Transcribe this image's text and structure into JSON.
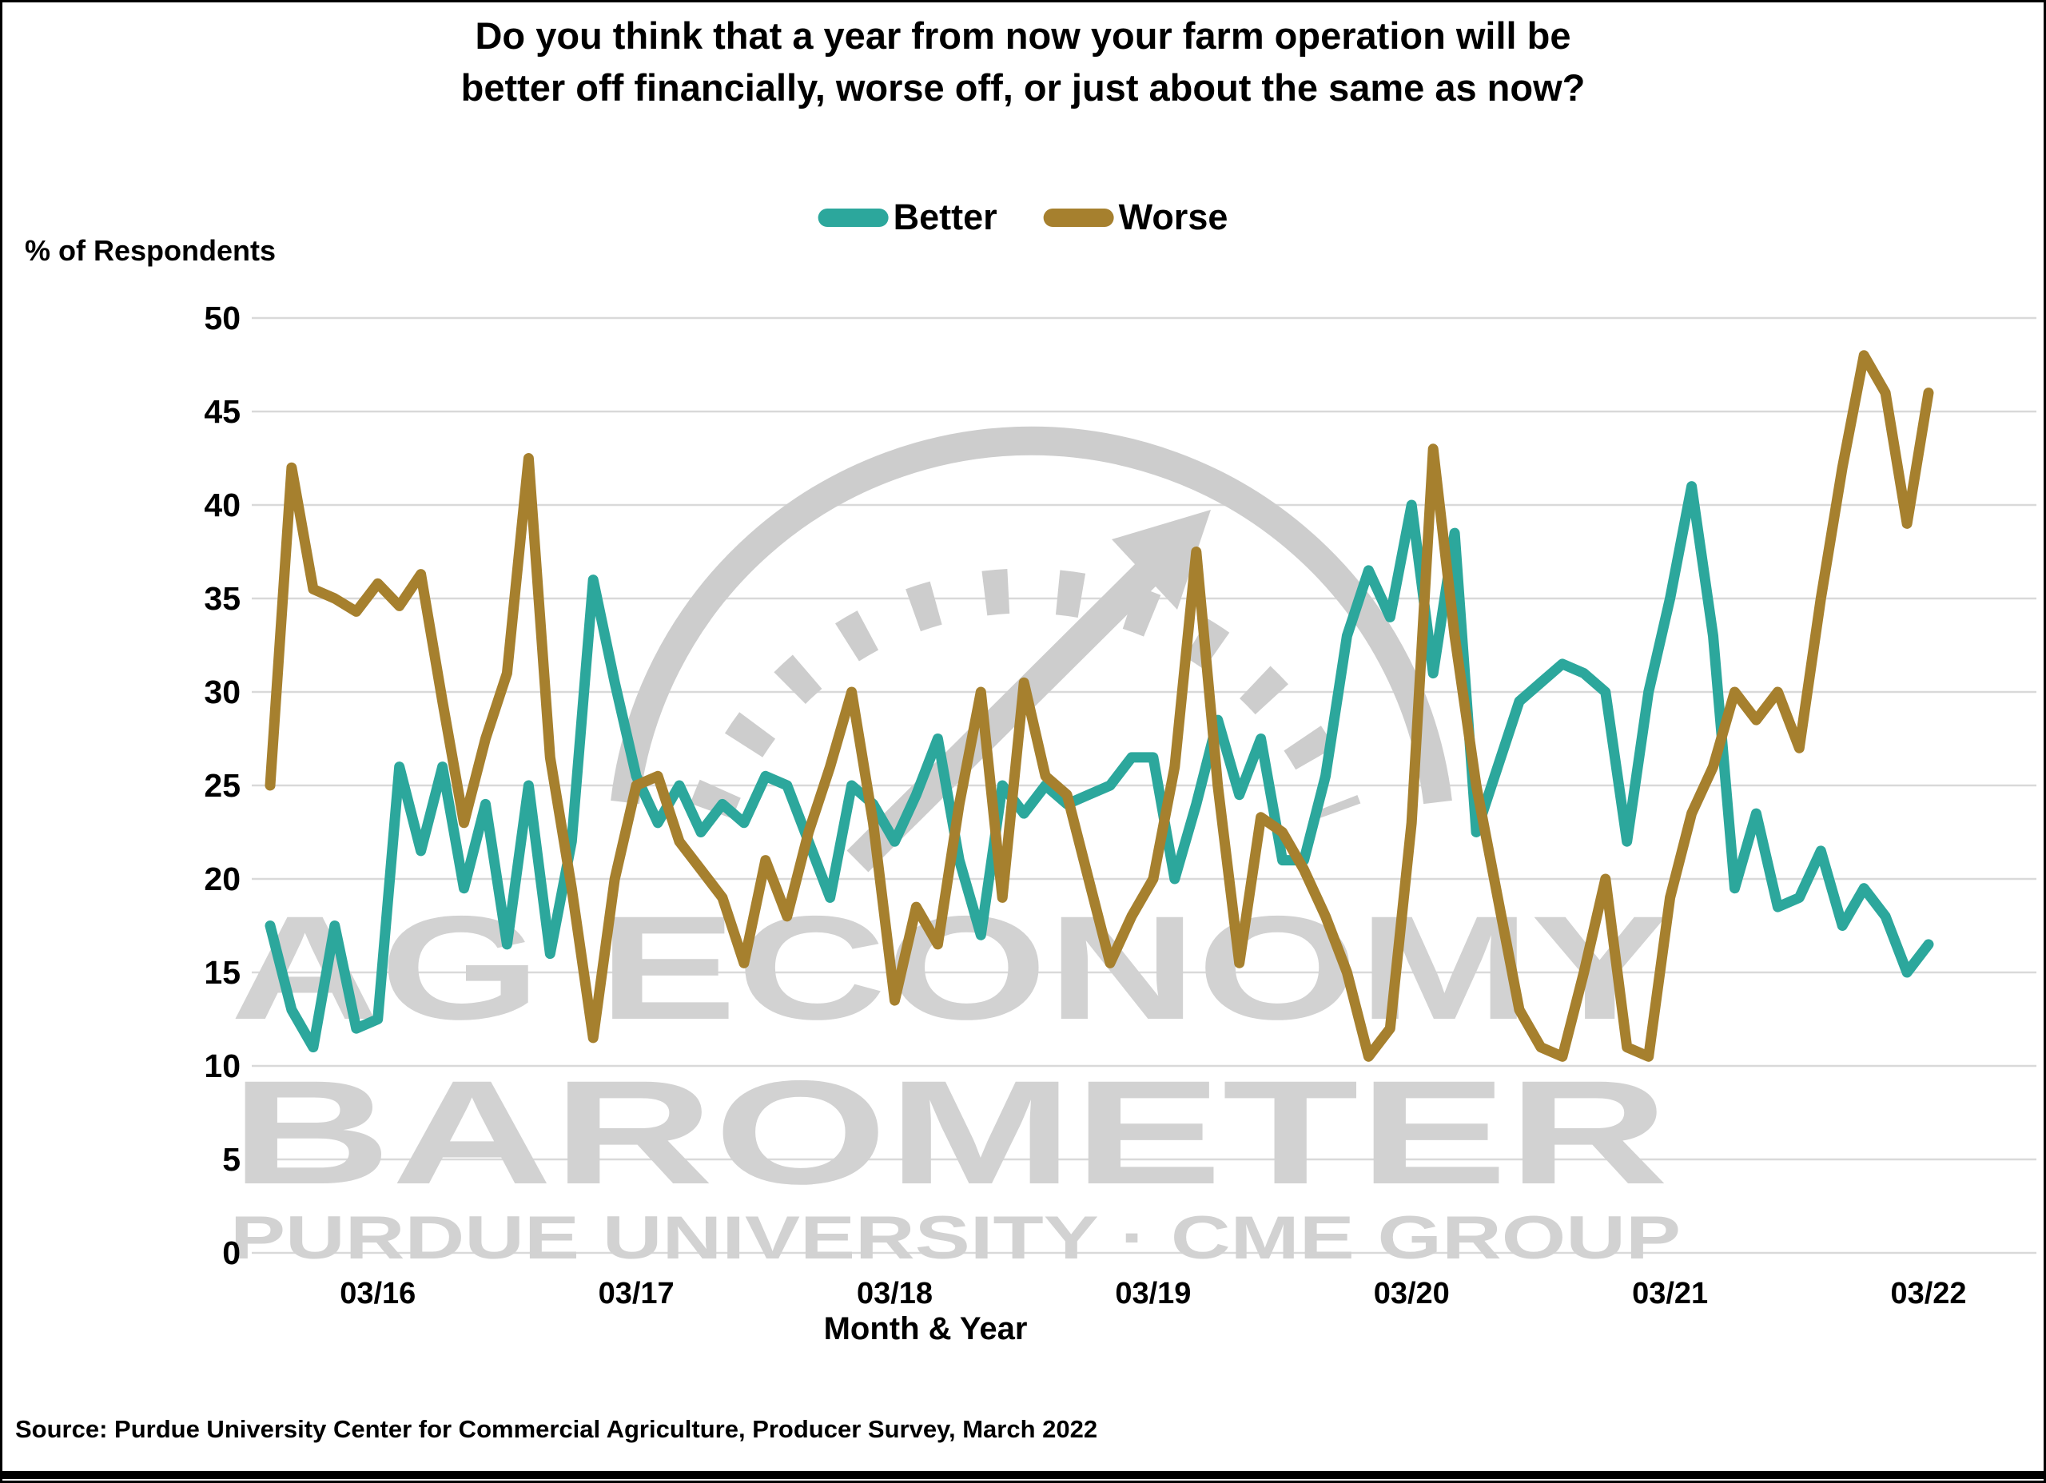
{
  "title": {
    "line1": "Do you think that a year from now your farm operation will be",
    "line2": "better off financially, worse off, or just about the same as now?"
  },
  "legend": [
    {
      "label": "Better",
      "color": "#2CA79C"
    },
    {
      "label": "Worse",
      "color": "#A6802E"
    }
  ],
  "y_axis": {
    "title": "% of Respondents",
    "ticks": [
      0,
      5,
      10,
      15,
      20,
      25,
      30,
      35,
      40,
      45,
      50
    ]
  },
  "x_axis": {
    "title": "Month & Year",
    "tick_labels": [
      "03/16",
      "03/17",
      "03/18",
      "03/19",
      "03/20",
      "03/21",
      "03/22"
    ]
  },
  "source": "Source: Purdue University Center for Commercial Agriculture, Producer Survey, March 2022",
  "watermark": {
    "line1": "AG ECONOMY",
    "line2": "BAROMETER",
    "line3": "PURDUE UNIVERSITY · CME GROUP",
    "text_color": "#d2d2d2",
    "gauge_color": "#cdcdcd"
  },
  "chart_data": {
    "type": "line",
    "title": "Do you think that a year from now your farm operation will be better off financially, worse off, or just about the same as now?",
    "xlabel": "Month & Year",
    "ylabel": "% of Respondents",
    "ylim": [
      0,
      50
    ],
    "grid": true,
    "legend_position": "top",
    "x": [
      "10/15",
      "11/15",
      "12/15",
      "01/16",
      "02/16",
      "03/16",
      "04/16",
      "05/16",
      "06/16",
      "07/16",
      "08/16",
      "09/16",
      "10/16",
      "11/16",
      "12/16",
      "01/17",
      "02/17",
      "03/17",
      "04/17",
      "05/17",
      "06/17",
      "07/17",
      "08/17",
      "09/17",
      "10/17",
      "11/17",
      "12/17",
      "01/18",
      "02/18",
      "03/18",
      "04/18",
      "05/18",
      "06/18",
      "07/18",
      "08/18",
      "09/18",
      "10/18",
      "11/18",
      "12/18",
      "01/19",
      "02/19",
      "03/19",
      "04/19",
      "05/19",
      "06/19",
      "07/19",
      "08/19",
      "09/19",
      "10/19",
      "11/19",
      "12/19",
      "01/20",
      "02/20",
      "03/20",
      "04/20",
      "05/20",
      "06/20",
      "07/20",
      "08/20",
      "09/20",
      "10/20",
      "11/20",
      "12/20",
      "01/21",
      "02/21",
      "03/21",
      "04/21",
      "05/21",
      "06/21",
      "07/21",
      "08/21",
      "09/21",
      "10/21",
      "11/21",
      "12/21",
      "01/22",
      "02/22",
      "03/22"
    ],
    "x_major_tick_indices": [
      5,
      17,
      29,
      41,
      53,
      65,
      77
    ],
    "series": [
      {
        "name": "Better",
        "color": "#2CA79C",
        "values": [
          17.5,
          13,
          11,
          17.5,
          12,
          12.5,
          26,
          21.5,
          26,
          19.5,
          24,
          16.5,
          25,
          16,
          22,
          36,
          30.5,
          25.5,
          23,
          25,
          22.5,
          24,
          23,
          25.5,
          25,
          22,
          19,
          25,
          24,
          22,
          24.5,
          27.5,
          21,
          17,
          25,
          23.5,
          25,
          24,
          24.5,
          25,
          26.5,
          26.5,
          20,
          24,
          28.5,
          24.5,
          27.5,
          21,
          21,
          25.5,
          33,
          36.5,
          34,
          40,
          31,
          38.5,
          22.5,
          26,
          29.5,
          30.5,
          31.5,
          31,
          30,
          22,
          30,
          35,
          41,
          33,
          19.5,
          23.5,
          18.5,
          19,
          21.5,
          17.5,
          19.5,
          18,
          15,
          16.5
        ]
      },
      {
        "name": "Worse",
        "color": "#A6802E",
        "values": [
          25,
          42,
          35.5,
          35,
          34.3,
          35.8,
          34.6,
          36.3,
          29.5,
          23,
          27.5,
          31,
          42.5,
          26.5,
          19.5,
          11.5,
          20,
          25,
          25.5,
          22,
          20.5,
          19,
          15.5,
          21,
          18,
          22.5,
          26,
          30,
          23,
          13.5,
          18.5,
          16.5,
          24,
          30,
          19,
          30.5,
          25.5,
          24.5,
          20,
          15.5,
          18,
          20,
          26,
          37.5,
          25,
          15.5,
          23.3,
          22.5,
          20.5,
          18,
          15,
          10.5,
          12,
          23,
          43,
          33,
          25,
          19,
          13,
          11,
          10.5,
          15,
          20,
          11,
          10.5,
          19,
          23.5,
          26,
          30,
          28.5,
          30,
          27,
          35,
          42,
          48,
          46,
          39,
          46
        ]
      }
    ]
  },
  "style": {
    "gridline_color": "#d9d9d9",
    "line_width": 13,
    "background": "#ffffff"
  }
}
